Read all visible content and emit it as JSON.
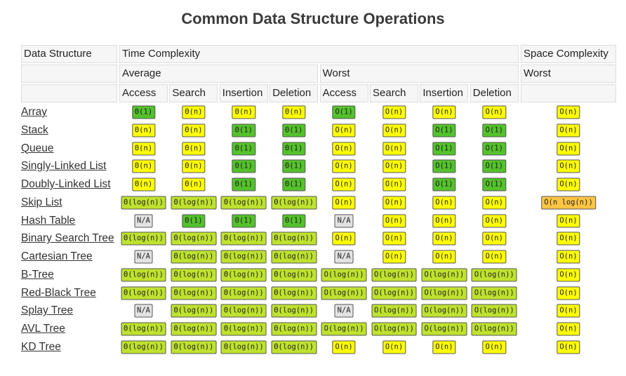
{
  "title": "Common Data Structure Operations",
  "header": {
    "data_structure": "Data Structure",
    "time_complexity": "Time Complexity",
    "space_complexity": "Space Complexity",
    "average": "Average",
    "worst": "Worst",
    "space_worst": "Worst",
    "operations": [
      "Access",
      "Search",
      "Insertion",
      "Deletion",
      "Access",
      "Search",
      "Insertion",
      "Deletion"
    ]
  },
  "rows": [
    {
      "name": "Array",
      "cells": [
        {
          "text": "Θ(1)",
          "color": "#53c22b"
        },
        {
          "text": "Θ(n)",
          "color": "#ffff00"
        },
        {
          "text": "Θ(n)",
          "color": "#ffff00"
        },
        {
          "text": "Θ(n)",
          "color": "#ffff00"
        },
        {
          "text": "O(1)",
          "color": "#53c22b"
        },
        {
          "text": "O(n)",
          "color": "#ffff00"
        },
        {
          "text": "O(n)",
          "color": "#ffff00"
        },
        {
          "text": "O(n)",
          "color": "#ffff00"
        },
        {
          "text": "O(n)",
          "color": "#ffff00"
        }
      ]
    },
    {
      "name": "Stack",
      "cells": [
        {
          "text": "Θ(n)",
          "color": "#ffff00"
        },
        {
          "text": "Θ(n)",
          "color": "#ffff00"
        },
        {
          "text": "Θ(1)",
          "color": "#53c22b"
        },
        {
          "text": "Θ(1)",
          "color": "#53c22b"
        },
        {
          "text": "O(n)",
          "color": "#ffff00"
        },
        {
          "text": "O(n)",
          "color": "#ffff00"
        },
        {
          "text": "O(1)",
          "color": "#53c22b"
        },
        {
          "text": "O(1)",
          "color": "#53c22b"
        },
        {
          "text": "O(n)",
          "color": "#ffff00"
        }
      ]
    },
    {
      "name": "Queue",
      "cells": [
        {
          "text": "Θ(n)",
          "color": "#ffff00"
        },
        {
          "text": "Θ(n)",
          "color": "#ffff00"
        },
        {
          "text": "Θ(1)",
          "color": "#53c22b"
        },
        {
          "text": "Θ(1)",
          "color": "#53c22b"
        },
        {
          "text": "O(n)",
          "color": "#ffff00"
        },
        {
          "text": "O(n)",
          "color": "#ffff00"
        },
        {
          "text": "O(1)",
          "color": "#53c22b"
        },
        {
          "text": "O(1)",
          "color": "#53c22b"
        },
        {
          "text": "O(n)",
          "color": "#ffff00"
        }
      ]
    },
    {
      "name": "Singly-Linked List",
      "cells": [
        {
          "text": "Θ(n)",
          "color": "#ffff00"
        },
        {
          "text": "Θ(n)",
          "color": "#ffff00"
        },
        {
          "text": "Θ(1)",
          "color": "#53c22b"
        },
        {
          "text": "Θ(1)",
          "color": "#53c22b"
        },
        {
          "text": "O(n)",
          "color": "#ffff00"
        },
        {
          "text": "O(n)",
          "color": "#ffff00"
        },
        {
          "text": "O(1)",
          "color": "#53c22b"
        },
        {
          "text": "O(1)",
          "color": "#53c22b"
        },
        {
          "text": "O(n)",
          "color": "#ffff00"
        }
      ]
    },
    {
      "name": "Doubly-Linked List",
      "cells": [
        {
          "text": "Θ(n)",
          "color": "#ffff00"
        },
        {
          "text": "Θ(n)",
          "color": "#ffff00"
        },
        {
          "text": "Θ(1)",
          "color": "#53c22b"
        },
        {
          "text": "Θ(1)",
          "color": "#53c22b"
        },
        {
          "text": "O(n)",
          "color": "#ffff00"
        },
        {
          "text": "O(n)",
          "color": "#ffff00"
        },
        {
          "text": "O(1)",
          "color": "#53c22b"
        },
        {
          "text": "O(1)",
          "color": "#53c22b"
        },
        {
          "text": "O(n)",
          "color": "#ffff00"
        }
      ]
    },
    {
      "name": "Skip List",
      "cells": [
        {
          "text": "Θ(log(n))",
          "color": "#bfe22e"
        },
        {
          "text": "Θ(log(n))",
          "color": "#bfe22e"
        },
        {
          "text": "Θ(log(n))",
          "color": "#bfe22e"
        },
        {
          "text": "Θ(log(n))",
          "color": "#bfe22e"
        },
        {
          "text": "O(n)",
          "color": "#ffff00"
        },
        {
          "text": "O(n)",
          "color": "#ffff00"
        },
        {
          "text": "O(n)",
          "color": "#ffff00"
        },
        {
          "text": "O(n)",
          "color": "#ffff00"
        },
        {
          "text": "O(n log(n))",
          "color": "#ffc543"
        }
      ]
    },
    {
      "name": "Hash Table",
      "cells": [
        {
          "text": "N/A",
          "color": "#e3e3e3"
        },
        {
          "text": "Θ(1)",
          "color": "#53c22b"
        },
        {
          "text": "Θ(1)",
          "color": "#53c22b"
        },
        {
          "text": "Θ(1)",
          "color": "#53c22b"
        },
        {
          "text": "N/A",
          "color": "#e3e3e3"
        },
        {
          "text": "O(n)",
          "color": "#ffff00"
        },
        {
          "text": "O(n)",
          "color": "#ffff00"
        },
        {
          "text": "O(n)",
          "color": "#ffff00"
        },
        {
          "text": "O(n)",
          "color": "#ffff00"
        }
      ]
    },
    {
      "name": "Binary Search Tree",
      "cells": [
        {
          "text": "Θ(log(n))",
          "color": "#bfe22e"
        },
        {
          "text": "Θ(log(n))",
          "color": "#bfe22e"
        },
        {
          "text": "Θ(log(n))",
          "color": "#bfe22e"
        },
        {
          "text": "Θ(log(n))",
          "color": "#bfe22e"
        },
        {
          "text": "O(n)",
          "color": "#ffff00"
        },
        {
          "text": "O(n)",
          "color": "#ffff00"
        },
        {
          "text": "O(n)",
          "color": "#ffff00"
        },
        {
          "text": "O(n)",
          "color": "#ffff00"
        },
        {
          "text": "O(n)",
          "color": "#ffff00"
        }
      ]
    },
    {
      "name": "Cartesian Tree",
      "cells": [
        {
          "text": "N/A",
          "color": "#e3e3e3"
        },
        {
          "text": "Θ(log(n))",
          "color": "#bfe22e"
        },
        {
          "text": "Θ(log(n))",
          "color": "#bfe22e"
        },
        {
          "text": "Θ(log(n))",
          "color": "#bfe22e"
        },
        {
          "text": "N/A",
          "color": "#e3e3e3"
        },
        {
          "text": "O(n)",
          "color": "#ffff00"
        },
        {
          "text": "O(n)",
          "color": "#ffff00"
        },
        {
          "text": "O(n)",
          "color": "#ffff00"
        },
        {
          "text": "O(n)",
          "color": "#ffff00"
        }
      ]
    },
    {
      "name": "B-Tree",
      "cells": [
        {
          "text": "Θ(log(n))",
          "color": "#bfe22e"
        },
        {
          "text": "Θ(log(n))",
          "color": "#bfe22e"
        },
        {
          "text": "Θ(log(n))",
          "color": "#bfe22e"
        },
        {
          "text": "Θ(log(n))",
          "color": "#bfe22e"
        },
        {
          "text": "O(log(n))",
          "color": "#bfe22e"
        },
        {
          "text": "O(log(n))",
          "color": "#bfe22e"
        },
        {
          "text": "O(log(n))",
          "color": "#bfe22e"
        },
        {
          "text": "O(log(n))",
          "color": "#bfe22e"
        },
        {
          "text": "O(n)",
          "color": "#ffff00"
        }
      ]
    },
    {
      "name": "Red-Black Tree",
      "cells": [
        {
          "text": "Θ(log(n))",
          "color": "#bfe22e"
        },
        {
          "text": "Θ(log(n))",
          "color": "#bfe22e"
        },
        {
          "text": "Θ(log(n))",
          "color": "#bfe22e"
        },
        {
          "text": "Θ(log(n))",
          "color": "#bfe22e"
        },
        {
          "text": "O(log(n))",
          "color": "#bfe22e"
        },
        {
          "text": "O(log(n))",
          "color": "#bfe22e"
        },
        {
          "text": "O(log(n))",
          "color": "#bfe22e"
        },
        {
          "text": "O(log(n))",
          "color": "#bfe22e"
        },
        {
          "text": "O(n)",
          "color": "#ffff00"
        }
      ]
    },
    {
      "name": "Splay Tree",
      "cells": [
        {
          "text": "N/A",
          "color": "#e3e3e3"
        },
        {
          "text": "Θ(log(n))",
          "color": "#bfe22e"
        },
        {
          "text": "Θ(log(n))",
          "color": "#bfe22e"
        },
        {
          "text": "Θ(log(n))",
          "color": "#bfe22e"
        },
        {
          "text": "N/A",
          "color": "#e3e3e3"
        },
        {
          "text": "O(log(n))",
          "color": "#bfe22e"
        },
        {
          "text": "O(log(n))",
          "color": "#bfe22e"
        },
        {
          "text": "O(log(n))",
          "color": "#bfe22e"
        },
        {
          "text": "O(n)",
          "color": "#ffff00"
        }
      ]
    },
    {
      "name": "AVL Tree",
      "cells": [
        {
          "text": "Θ(log(n))",
          "color": "#bfe22e"
        },
        {
          "text": "Θ(log(n))",
          "color": "#bfe22e"
        },
        {
          "text": "Θ(log(n))",
          "color": "#bfe22e"
        },
        {
          "text": "Θ(log(n))",
          "color": "#bfe22e"
        },
        {
          "text": "O(log(n))",
          "color": "#bfe22e"
        },
        {
          "text": "O(log(n))",
          "color": "#bfe22e"
        },
        {
          "text": "O(log(n))",
          "color": "#bfe22e"
        },
        {
          "text": "O(log(n))",
          "color": "#bfe22e"
        },
        {
          "text": "O(n)",
          "color": "#ffff00"
        }
      ]
    },
    {
      "name": "KD Tree",
      "cells": [
        {
          "text": "Θ(log(n))",
          "color": "#bfe22e"
        },
        {
          "text": "Θ(log(n))",
          "color": "#bfe22e"
        },
        {
          "text": "Θ(log(n))",
          "color": "#bfe22e"
        },
        {
          "text": "Θ(log(n))",
          "color": "#bfe22e"
        },
        {
          "text": "O(n)",
          "color": "#ffff00"
        },
        {
          "text": "O(n)",
          "color": "#ffff00"
        },
        {
          "text": "O(n)",
          "color": "#ffff00"
        },
        {
          "text": "O(n)",
          "color": "#ffff00"
        },
        {
          "text": "O(n)",
          "color": "#ffff00"
        }
      ]
    }
  ]
}
